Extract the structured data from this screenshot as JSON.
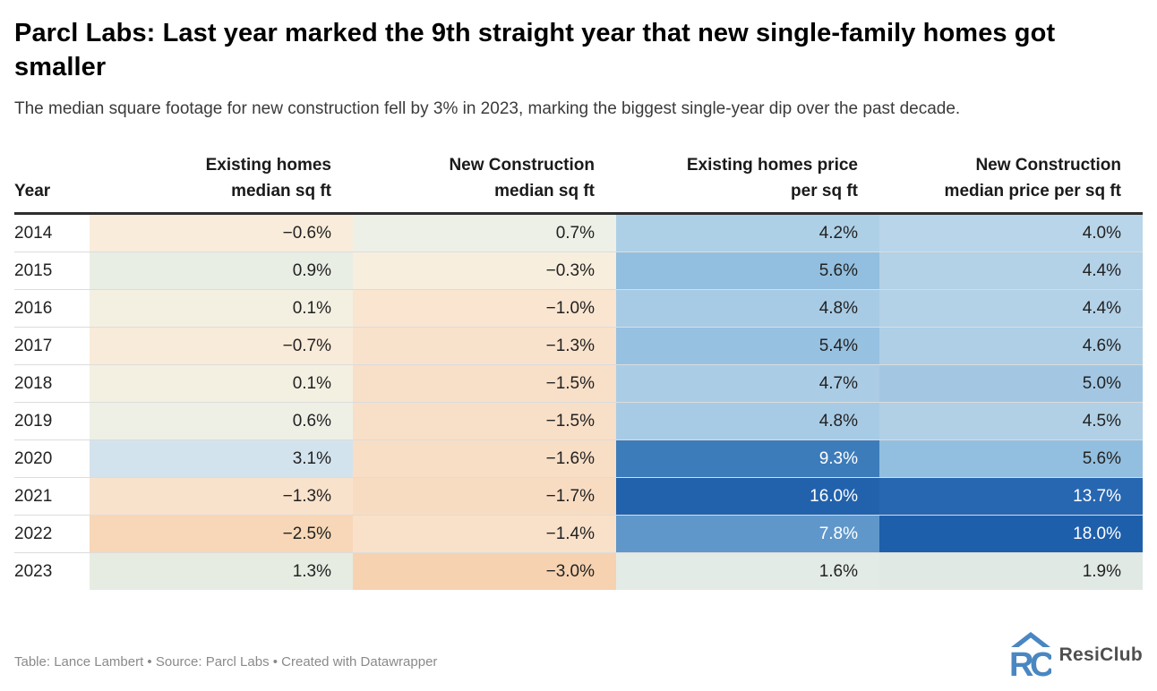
{
  "header": {
    "title": "Parcl Labs: Last year marked the 9th straight year that new single-family homes got smaller",
    "subtitle": "The median square footage for new construction fell by 3% in 2023, marking the biggest single-year dip over the past decade."
  },
  "table": {
    "columns": [
      {
        "label": "Year",
        "align": "left"
      },
      {
        "label": "Existing homes\nmedian sq ft",
        "align": "right"
      },
      {
        "label": "New Construction\nmedian sq ft",
        "align": "right"
      },
      {
        "label": "Existing homes price\nper sq ft",
        "align": "right"
      },
      {
        "label": "New Construction\nmedian price per sq ft",
        "align": "right"
      }
    ],
    "rows": [
      {
        "year": "2014",
        "cells": [
          {
            "value": "−0.6%",
            "bg": "#f9ecdb"
          },
          {
            "value": "0.7%",
            "bg": "#edf0e6"
          },
          {
            "value": "4.2%",
            "bg": "#aed0e6"
          },
          {
            "value": "4.0%",
            "bg": "#b9d5e9"
          }
        ]
      },
      {
        "year": "2015",
        "cells": [
          {
            "value": "0.9%",
            "bg": "#e9eee5"
          },
          {
            "value": "−0.3%",
            "bg": "#f8eedd"
          },
          {
            "value": "5.6%",
            "bg": "#92bfdf"
          },
          {
            "value": "4.4%",
            "bg": "#b3d1e7"
          }
        ]
      },
      {
        "year": "2016",
        "cells": [
          {
            "value": "0.1%",
            "bg": "#f3f0e2"
          },
          {
            "value": "−1.0%",
            "bg": "#f9e5d0"
          },
          {
            "value": "4.8%",
            "bg": "#a8cbe5"
          },
          {
            "value": "4.4%",
            "bg": "#b3d1e7"
          }
        ]
      },
      {
        "year": "2017",
        "cells": [
          {
            "value": "−0.7%",
            "bg": "#f9ebd9"
          },
          {
            "value": "−1.3%",
            "bg": "#f9e2cb"
          },
          {
            "value": "5.4%",
            "bg": "#97c1e1"
          },
          {
            "value": "4.6%",
            "bg": "#aecfe6"
          }
        ]
      },
      {
        "year": "2018",
        "cells": [
          {
            "value": "0.1%",
            "bg": "#f3f0e2"
          },
          {
            "value": "−1.5%",
            "bg": "#f8dfc7"
          },
          {
            "value": "4.7%",
            "bg": "#abcce5"
          },
          {
            "value": "5.0%",
            "bg": "#a3c7e3"
          }
        ]
      },
      {
        "year": "2019",
        "cells": [
          {
            "value": "0.6%",
            "bg": "#eef0e6"
          },
          {
            "value": "−1.5%",
            "bg": "#f8dfc7"
          },
          {
            "value": "4.8%",
            "bg": "#a8cbe5"
          },
          {
            "value": "4.5%",
            "bg": "#b1d0e6"
          }
        ]
      },
      {
        "year": "2020",
        "cells": [
          {
            "value": "3.1%",
            "bg": "#d3e3ee"
          },
          {
            "value": "−1.6%",
            "bg": "#f8dec5"
          },
          {
            "value": "9.3%",
            "bg": "#3d7cba",
            "fg": "#ffffff"
          },
          {
            "value": "5.6%",
            "bg": "#92bfdf"
          }
        ]
      },
      {
        "year": "2021",
        "cells": [
          {
            "value": "−1.3%",
            "bg": "#f9e2cb"
          },
          {
            "value": "−1.7%",
            "bg": "#f8dcc2"
          },
          {
            "value": "16.0%",
            "bg": "#2262ac",
            "fg": "#ffffff"
          },
          {
            "value": "13.7%",
            "bg": "#2767b1",
            "fg": "#ffffff"
          }
        ]
      },
      {
        "year": "2022",
        "cells": [
          {
            "value": "−2.5%",
            "bg": "#f7d7b7"
          },
          {
            "value": "−1.4%",
            "bg": "#f9e1c9"
          },
          {
            "value": "7.8%",
            "bg": "#5f97cb",
            "fg": "#ffffff"
          },
          {
            "value": "18.0%",
            "bg": "#1e5fab",
            "fg": "#ffffff"
          }
        ]
      },
      {
        "year": "2023",
        "cells": [
          {
            "value": "1.3%",
            "bg": "#e6ece1"
          },
          {
            "value": "−3.0%",
            "bg": "#f7d2b0"
          },
          {
            "value": "1.6%",
            "bg": "#e3ebe6"
          },
          {
            "value": "1.9%",
            "bg": "#e1e9e5"
          }
        ]
      }
    ]
  },
  "footer": {
    "credit": "Table: Lance Lambert • Source: Parcl Labs • Created with Datawrapper",
    "logo_text": "ResiClub",
    "logo_color": "#4a87c2"
  },
  "colors": {
    "header_rule": "#2e2e2e",
    "row_divider": "#dcdcdc",
    "negative_max": "#f7d2b0",
    "positive_blue_max": "#1e5fab"
  },
  "chart_data": {
    "type": "heatmap",
    "title": "Parcl Labs: Last year marked the 9th straight year that new single-family homes got smaller",
    "subtitle": "The median square footage for new construction fell by 3% in 2023, marking the biggest single-year dip over the past decade.",
    "categories": [
      "2014",
      "2015",
      "2016",
      "2017",
      "2018",
      "2019",
      "2020",
      "2021",
      "2022",
      "2023"
    ],
    "unit": "%",
    "series": [
      {
        "name": "Existing homes median sq ft",
        "values": [
          -0.6,
          0.9,
          0.1,
          -0.7,
          0.1,
          0.6,
          3.1,
          -1.3,
          -2.5,
          1.3
        ]
      },
      {
        "name": "New Construction median sq ft",
        "values": [
          0.7,
          -0.3,
          -1.0,
          -1.3,
          -1.5,
          -1.5,
          -1.6,
          -1.7,
          -1.4,
          -3.0
        ]
      },
      {
        "name": "Existing homes price per sq ft",
        "values": [
          4.2,
          5.6,
          4.8,
          5.4,
          4.7,
          4.8,
          9.3,
          16.0,
          7.8,
          1.6
        ]
      },
      {
        "name": "New Construction median price per sq ft",
        "values": [
          4.0,
          4.4,
          4.4,
          4.6,
          5.0,
          4.5,
          5.6,
          13.7,
          18.0,
          1.9
        ]
      }
    ],
    "layout": {
      "legend": false,
      "color_scale": "diverging orange(negative) to blue(positive)"
    }
  }
}
